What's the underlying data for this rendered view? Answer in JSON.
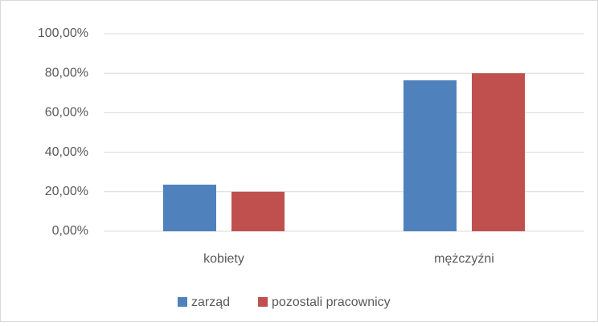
{
  "chart_data": {
    "type": "bar",
    "categories": [
      "kobiety",
      "mężczyźni"
    ],
    "series": [
      {
        "name": "zarząd",
        "color": "#4f81bd",
        "values": [
          23.6,
          76.4
        ]
      },
      {
        "name": "pozostali pracownicy",
        "color": "#c0504d",
        "values": [
          20,
          80
        ]
      }
    ],
    "ylim": [
      0,
      100
    ],
    "yticks": [
      {
        "value": 0,
        "label": "0,00%"
      },
      {
        "value": 20,
        "label": "20,00%"
      },
      {
        "value": 40,
        "label": "40,00%"
      },
      {
        "value": 60,
        "label": "60,00%"
      },
      {
        "value": 80,
        "label": "80,00%"
      },
      {
        "value": 100,
        "label": "100,00%"
      }
    ],
    "grid": true,
    "legend": "bottom"
  }
}
